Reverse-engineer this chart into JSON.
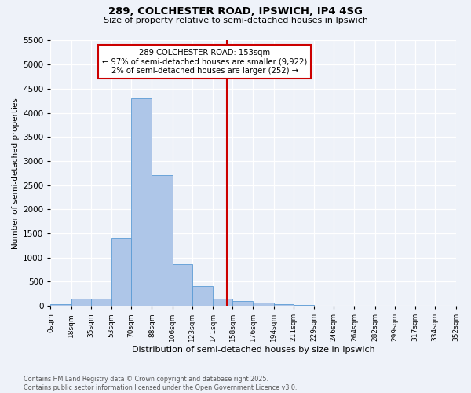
{
  "title_line1": "289, COLCHESTER ROAD, IPSWICH, IP4 4SG",
  "title_line2": "Size of property relative to semi-detached houses in Ipswich",
  "xlabel": "Distribution of semi-detached houses by size in Ipswich",
  "ylabel": "Number of semi-detached properties",
  "bin_labels": [
    "0sqm",
    "18sqm",
    "35sqm",
    "53sqm",
    "70sqm",
    "88sqm",
    "106sqm",
    "123sqm",
    "141sqm",
    "158sqm",
    "176sqm",
    "194sqm",
    "211sqm",
    "229sqm",
    "246sqm",
    "264sqm",
    "282sqm",
    "299sqm",
    "317sqm",
    "334sqm",
    "352sqm"
  ],
  "bin_edges": [
    0,
    18,
    35,
    53,
    70,
    88,
    106,
    123,
    141,
    158,
    176,
    194,
    211,
    229,
    246,
    264,
    282,
    299,
    317,
    334,
    352
  ],
  "bar_heights": [
    30,
    150,
    150,
    1400,
    4300,
    2700,
    860,
    400,
    150,
    100,
    60,
    30,
    10,
    5,
    3,
    2,
    1,
    1,
    0,
    0
  ],
  "bar_color": "#aec6e8",
  "bar_edge_color": "#5b9bd5",
  "vline_color": "#cc0000",
  "vline_x": 153,
  "annotation_text": "289 COLCHESTER ROAD: 153sqm\n← 97% of semi-detached houses are smaller (9,922)\n2% of semi-detached houses are larger (252) →",
  "annotation_box_color": "#cc0000",
  "ylim": [
    0,
    5500
  ],
  "yticks": [
    0,
    500,
    1000,
    1500,
    2000,
    2500,
    3000,
    3500,
    4000,
    4500,
    5000,
    5500
  ],
  "background_color": "#eef2f9",
  "grid_color": "#ffffff",
  "footer_line1": "Contains HM Land Registry data © Crown copyright and database right 2025.",
  "footer_line2": "Contains public sector information licensed under the Open Government Licence v3.0."
}
